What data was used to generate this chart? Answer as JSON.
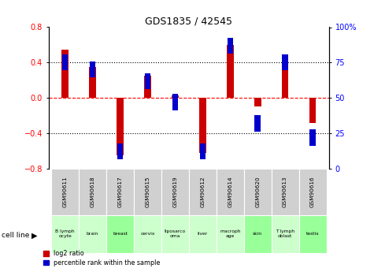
{
  "title": "GDS1835 / 42545",
  "samples": [
    "GSM90611",
    "GSM90618",
    "GSM90617",
    "GSM90615",
    "GSM90619",
    "GSM90612",
    "GSM90614",
    "GSM90620",
    "GSM90613",
    "GSM90616"
  ],
  "cell_lines": [
    "B lymph\nocyte",
    "brain",
    "breast",
    "cervix",
    "liposarco\noma",
    "liver",
    "macroph\nage",
    "skin",
    "T lymph\noblast",
    "testis"
  ],
  "cell_line_colors": [
    "#ccffcc",
    "#ccffcc",
    "#99ff99",
    "#ccffcc",
    "#ccffcc",
    "#ccffcc",
    "#ccffcc",
    "#99ff99",
    "#ccffcc",
    "#99ff99"
  ],
  "log2_ratio": [
    0.55,
    0.35,
    -0.65,
    0.25,
    0.03,
    -0.62,
    0.6,
    -0.1,
    0.42,
    -0.28
  ],
  "percentile_rank": [
    75,
    70,
    12,
    62,
    47,
    12,
    87,
    32,
    75,
    22
  ],
  "ylim": [
    -0.8,
    0.8
  ],
  "yticks_left": [
    -0.8,
    -0.4,
    0.0,
    0.4,
    0.8
  ],
  "yticks_right": [
    0,
    25,
    50,
    75,
    100
  ],
  "bar_color_red": "#cc0000",
  "bar_color_blue": "#0000cc",
  "bar_width": 0.25,
  "blue_size": 0.18,
  "gsm_bg": "#d0d0d0",
  "cell_line_label": "cell line"
}
